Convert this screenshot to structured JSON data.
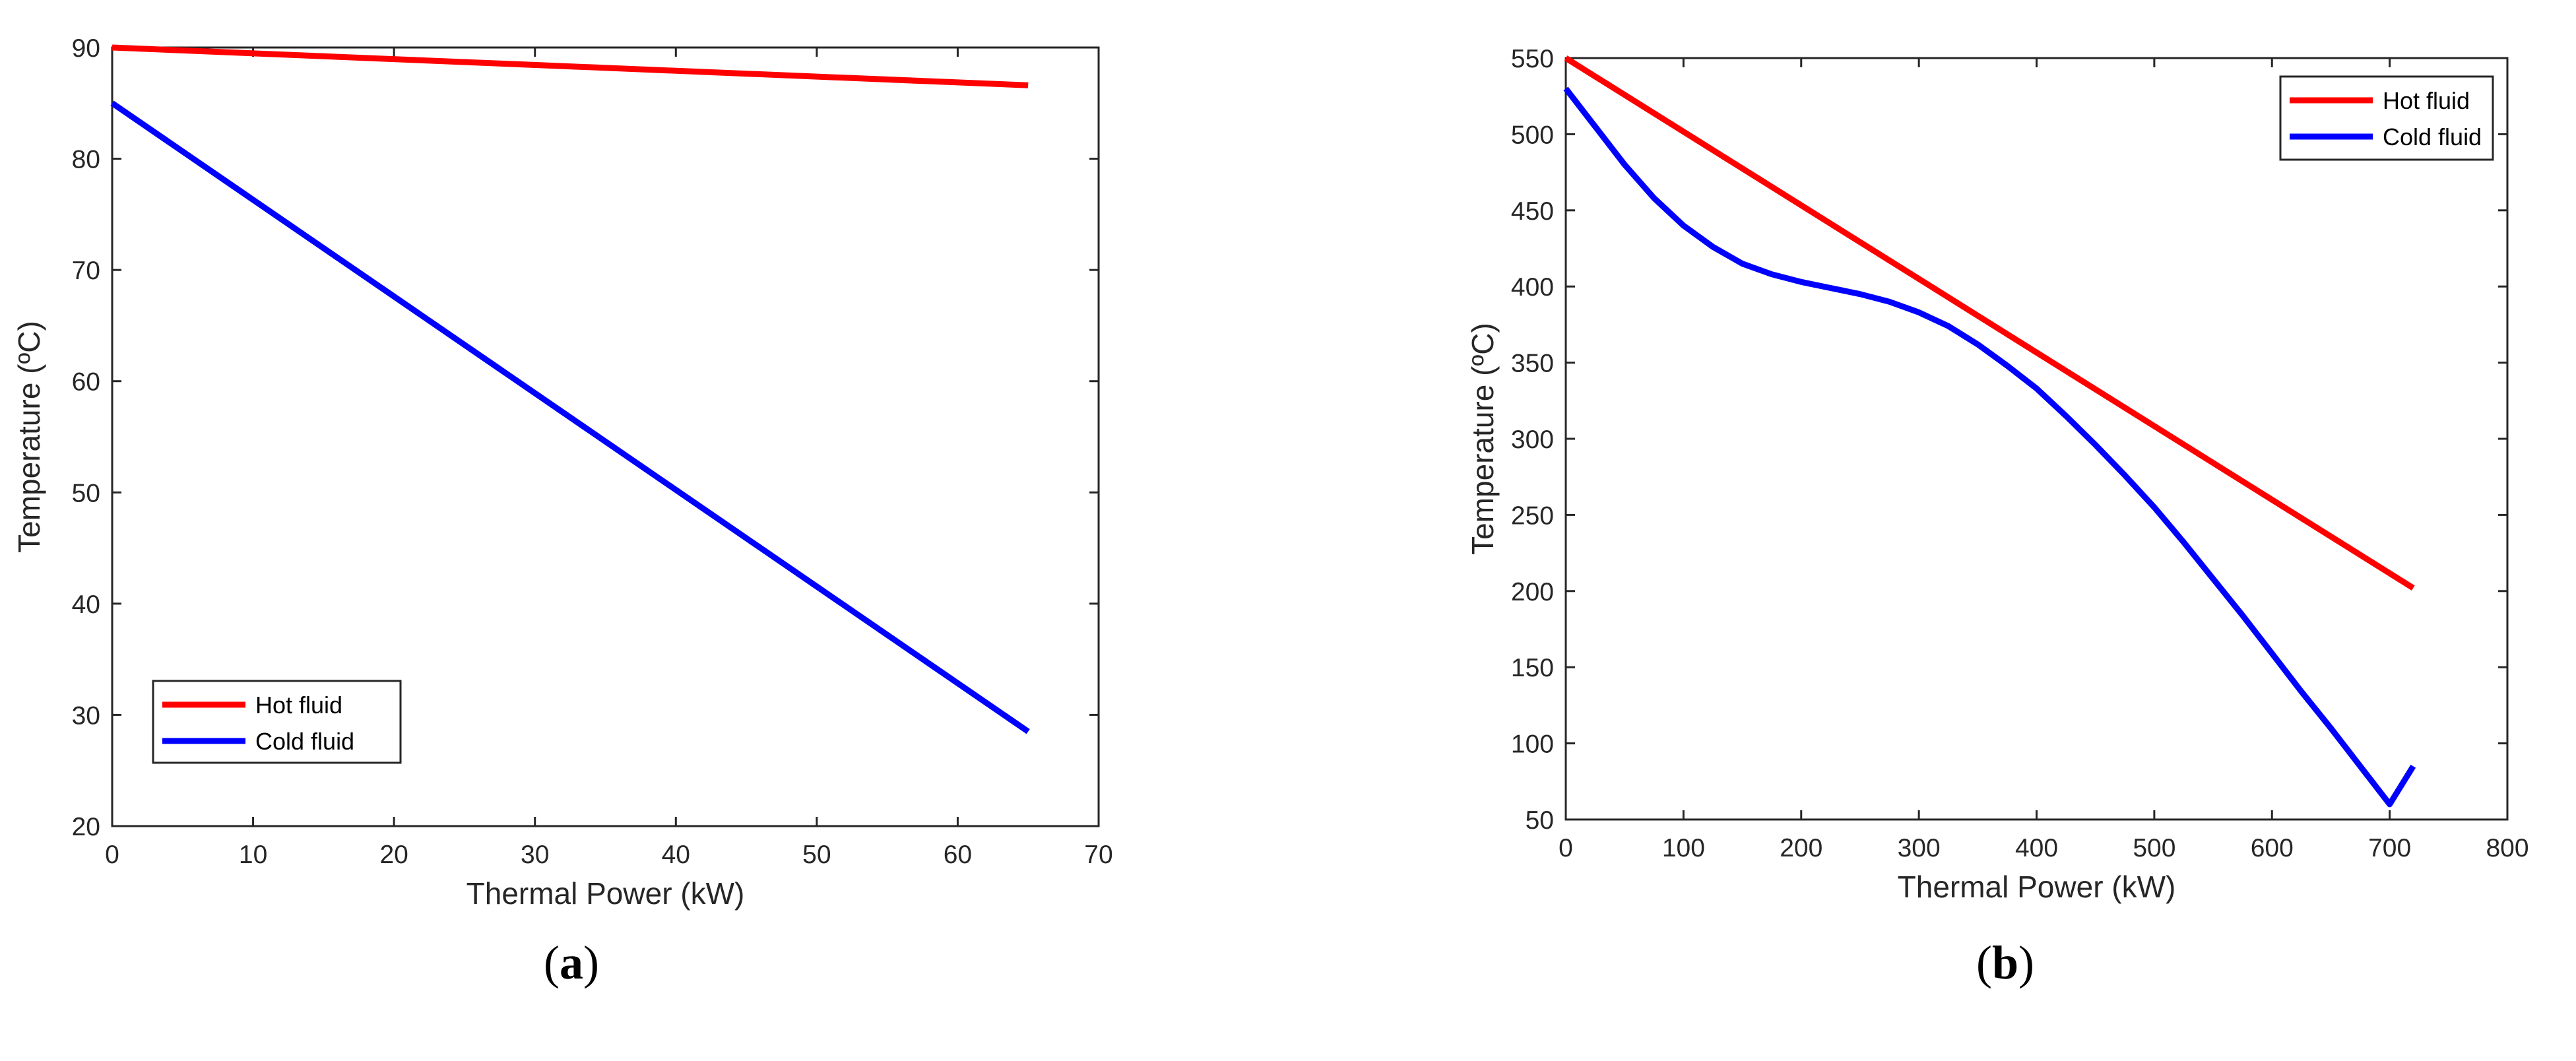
{
  "chart_data": [
    {
      "type": "line",
      "panel_label": {
        "open": "(",
        "letter": "a",
        "close": ")"
      },
      "xlabel": "Thermal Power (kW)",
      "ylabel": "Temperature (ºC)",
      "xlim": [
        0,
        70
      ],
      "ylim": [
        20,
        90
      ],
      "xticks": [
        "0",
        "10",
        "20",
        "30",
        "40",
        "50",
        "60",
        "70"
      ],
      "yticks": [
        "20",
        "30",
        "40",
        "50",
        "60",
        "70",
        "80",
        "90"
      ],
      "grid": false,
      "legend_position": "bottom-left",
      "series": [
        {
          "name": "Hot fluid",
          "color": "#ff0000",
          "x": [
            0,
            65
          ],
          "y": [
            90,
            86.6
          ]
        },
        {
          "name": "Cold fluid",
          "color": "#0000ff",
          "x": [
            0,
            65
          ],
          "y": [
            85,
            28.5
          ]
        }
      ]
    },
    {
      "type": "line",
      "panel_label": {
        "open": "(",
        "letter": "b",
        "close": ")"
      },
      "xlabel": "Thermal Power (kW)",
      "ylabel": "Temperature (ºC)",
      "xlim": [
        0,
        800
      ],
      "ylim": [
        50,
        550
      ],
      "xticks": [
        "0",
        "100",
        "200",
        "300",
        "400",
        "500",
        "600",
        "700",
        "800"
      ],
      "yticks": [
        "50",
        "100",
        "150",
        "200",
        "250",
        "300",
        "350",
        "400",
        "450",
        "500",
        "550"
      ],
      "grid": false,
      "legend_position": "top-right",
      "series": [
        {
          "name": "Hot fluid",
          "color": "#ff0000",
          "x": [
            0,
            720
          ],
          "y": [
            550,
            202
          ]
        },
        {
          "name": "Cold fluid",
          "color": "#0000ff",
          "x": [
            0,
            25,
            50,
            75,
            100,
            125,
            150,
            175,
            200,
            225,
            250,
            275,
            300,
            325,
            350,
            375,
            400,
            425,
            450,
            475,
            500,
            525,
            550,
            575,
            600,
            625,
            650,
            675,
            700,
            720
          ],
          "y": [
            530,
            505,
            480,
            458,
            440,
            426,
            415,
            408,
            403,
            399,
            395,
            390,
            383,
            374,
            362,
            348,
            333,
            315,
            296,
            276,
            255,
            232,
            208,
            184,
            159,
            134,
            110,
            85,
            60,
            85
          ]
        }
      ]
    }
  ]
}
